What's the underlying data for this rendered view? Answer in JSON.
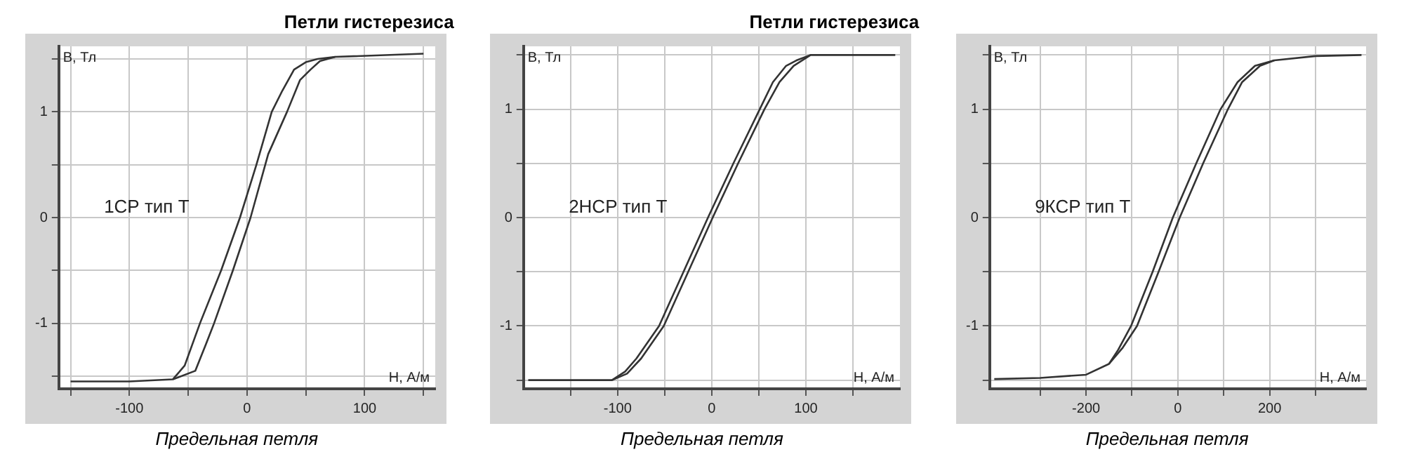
{
  "chart_data": [
    {
      "type": "line",
      "title": "Петли гистерезиса",
      "xlabel": "H, А/м",
      "ylabel": "B, Тл",
      "annotations": [
        "1СР тип Т",
        "Предельная петля"
      ],
      "grid": true,
      "legend": false,
      "marker": "none",
      "line_style": "solid",
      "xlim": [
        -160,
        160
      ],
      "ylim": [
        -1.62,
        1.62
      ],
      "xticks": [
        {
          "value": -150,
          "label": null
        },
        -100,
        {
          "value": -50,
          "label": null
        },
        0,
        {
          "value": 50,
          "label": null
        },
        100,
        {
          "value": 150,
          "label": null
        }
      ],
      "yticks": [
        {
          "value": -1.5,
          "label": null
        },
        -1,
        {
          "value": -0.5,
          "label": null
        },
        0,
        {
          "value": 0.5,
          "label": null
        },
        1,
        {
          "value": 1.5,
          "label": null
        }
      ],
      "series": [
        {
          "color": "#333333",
          "x": [
            -150,
            -100,
            -63,
            -44,
            -35,
            -28,
            -12,
            3,
            18,
            34,
            45,
            54,
            62,
            75,
            150
          ],
          "values": [
            -1.55,
            -1.55,
            -1.53,
            -1.45,
            -1.2,
            -1,
            -0.5,
            0,
            0.6,
            1,
            1.3,
            1.4,
            1.48,
            1.52,
            1.55
          ]
        },
        {
          "color": "#333333",
          "x": [
            75,
            60,
            50,
            40,
            30,
            21,
            8,
            -6,
            -22,
            -40,
            -53,
            -63
          ],
          "values": [
            1.52,
            1.5,
            1.47,
            1.4,
            1.2,
            1,
            0.5,
            0,
            -0.5,
            -1,
            -1.4,
            -1.53
          ]
        }
      ]
    },
    {
      "type": "line",
      "title": "Петли гистерезиса",
      "xlabel": "H, А/м",
      "ylabel": "B, Тл",
      "annotations": [
        "2НСР тип Т",
        "Предельная петля"
      ],
      "grid": true,
      "legend": false,
      "marker": "none",
      "line_style": "solid",
      "xlim": [
        -200,
        200
      ],
      "ylim": [
        -1.58,
        1.58
      ],
      "xticks": [
        {
          "value": -150,
          "label": null
        },
        -100,
        {
          "value": -50,
          "label": null
        },
        0,
        {
          "value": 50,
          "label": null
        },
        100,
        {
          "value": 150,
          "label": null
        }
      ],
      "yticks": [
        {
          "value": -1.5,
          "label": null
        },
        -1,
        {
          "value": -0.5,
          "label": null
        },
        0,
        {
          "value": 0.5,
          "label": null
        },
        1,
        {
          "value": 1.5,
          "label": null
        }
      ],
      "series": [
        {
          "color": "#333333",
          "x": [
            -195,
            -106,
            -90,
            -75,
            -51,
            -25,
            1,
            28,
            56,
            72,
            87,
            105,
            195
          ],
          "values": [
            -1.5,
            -1.5,
            -1.44,
            -1.3,
            -1,
            -0.5,
            0,
            0.5,
            1,
            1.25,
            1.4,
            1.5,
            1.5
          ]
        },
        {
          "color": "#333333",
          "x": [
            105,
            90,
            79,
            65,
            51,
            23,
            -4,
            -30,
            -56,
            -80,
            -92,
            -106
          ],
          "values": [
            1.5,
            1.45,
            1.4,
            1.25,
            1,
            0.5,
            0,
            -0.5,
            -1,
            -1.3,
            -1.42,
            -1.5
          ]
        }
      ]
    },
    {
      "type": "line",
      "xlabel": "H, А/м",
      "ylabel": "B, Тл",
      "annotations": [
        "9КСР тип Т",
        "Предельная петля"
      ],
      "grid": true,
      "legend": false,
      "marker": "none",
      "line_style": "solid",
      "xlim": [
        -410,
        410
      ],
      "ylim": [
        -1.58,
        1.58
      ],
      "xticks": [
        {
          "value": -300,
          "label": null
        },
        -200,
        {
          "value": -100,
          "label": null
        },
        0,
        {
          "value": 100,
          "label": null
        },
        200,
        {
          "value": 300,
          "label": null
        }
      ],
      "yticks": [
        {
          "value": -1.5,
          "label": null
        },
        -1,
        {
          "value": -0.5,
          "label": null
        },
        0,
        {
          "value": 0.5,
          "label": null
        },
        1,
        {
          "value": 1.5,
          "label": null
        }
      ],
      "series": [
        {
          "color": "#333333",
          "x": [
            -400,
            -300,
            -200,
            -150,
            -120,
            -89,
            -42,
            4,
            55,
            109,
            140,
            179,
            210,
            300,
            400
          ],
          "values": [
            -1.49,
            -1.48,
            -1.45,
            -1.35,
            -1.2,
            -1,
            -0.5,
            0,
            0.5,
            1,
            1.25,
            1.4,
            1.45,
            1.49,
            1.5
          ]
        },
        {
          "color": "#333333",
          "x": [
            210,
            168,
            130,
            93,
            40,
            -11,
            -55,
            -102,
            -130,
            -150
          ],
          "values": [
            1.45,
            1.4,
            1.25,
            1,
            0.5,
            0,
            -0.5,
            -1,
            -1.22,
            -1.35
          ]
        }
      ]
    }
  ]
}
